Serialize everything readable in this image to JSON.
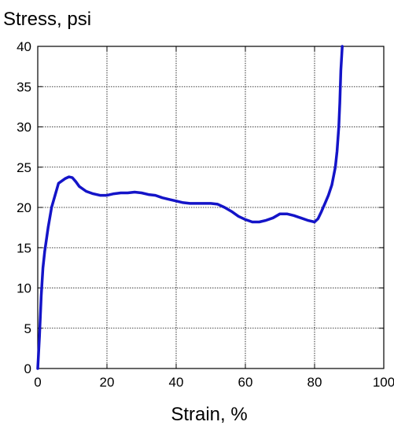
{
  "chart_data": {
    "type": "line",
    "ylabel": "Stress, psi",
    "xlabel": "Strain, %",
    "xlim": [
      0,
      100
    ],
    "ylim": [
      0,
      40
    ],
    "xticks": [
      0,
      20,
      40,
      60,
      80,
      100
    ],
    "yticks": [
      0,
      5,
      10,
      15,
      20,
      25,
      30,
      35,
      40
    ],
    "grid": true,
    "line_color": "#1414c8",
    "series": [
      {
        "x": [
          0,
          0.5,
          1,
          1.5,
          2,
          3,
          4,
          5,
          6,
          7,
          8,
          9,
          10,
          11,
          12,
          14,
          16,
          18,
          20,
          22,
          24,
          26,
          28,
          30,
          32,
          34,
          36,
          38,
          40,
          42,
          44,
          46,
          48,
          50,
          52,
          54,
          56,
          58,
          60,
          62,
          64,
          66,
          68,
          70,
          72,
          74,
          76,
          78,
          80,
          81,
          82,
          83,
          84,
          85,
          86,
          86.5,
          87,
          87.3,
          87.6,
          88
        ],
        "y": [
          0,
          4,
          9,
          12.5,
          14.5,
          17.5,
          20,
          21.5,
          23,
          23.3,
          23.6,
          23.8,
          23.7,
          23.2,
          22.6,
          22,
          21.7,
          21.5,
          21.5,
          21.7,
          21.8,
          21.8,
          21.9,
          21.8,
          21.6,
          21.5,
          21.2,
          21,
          20.8,
          20.6,
          20.5,
          20.5,
          20.5,
          20.5,
          20.4,
          20,
          19.5,
          18.9,
          18.5,
          18.2,
          18.2,
          18.4,
          18.7,
          19.2,
          19.2,
          19,
          18.7,
          18.4,
          18.2,
          18.6,
          19.5,
          20.5,
          21.5,
          22.8,
          25,
          27,
          30,
          33,
          37,
          40
        ]
      }
    ]
  }
}
